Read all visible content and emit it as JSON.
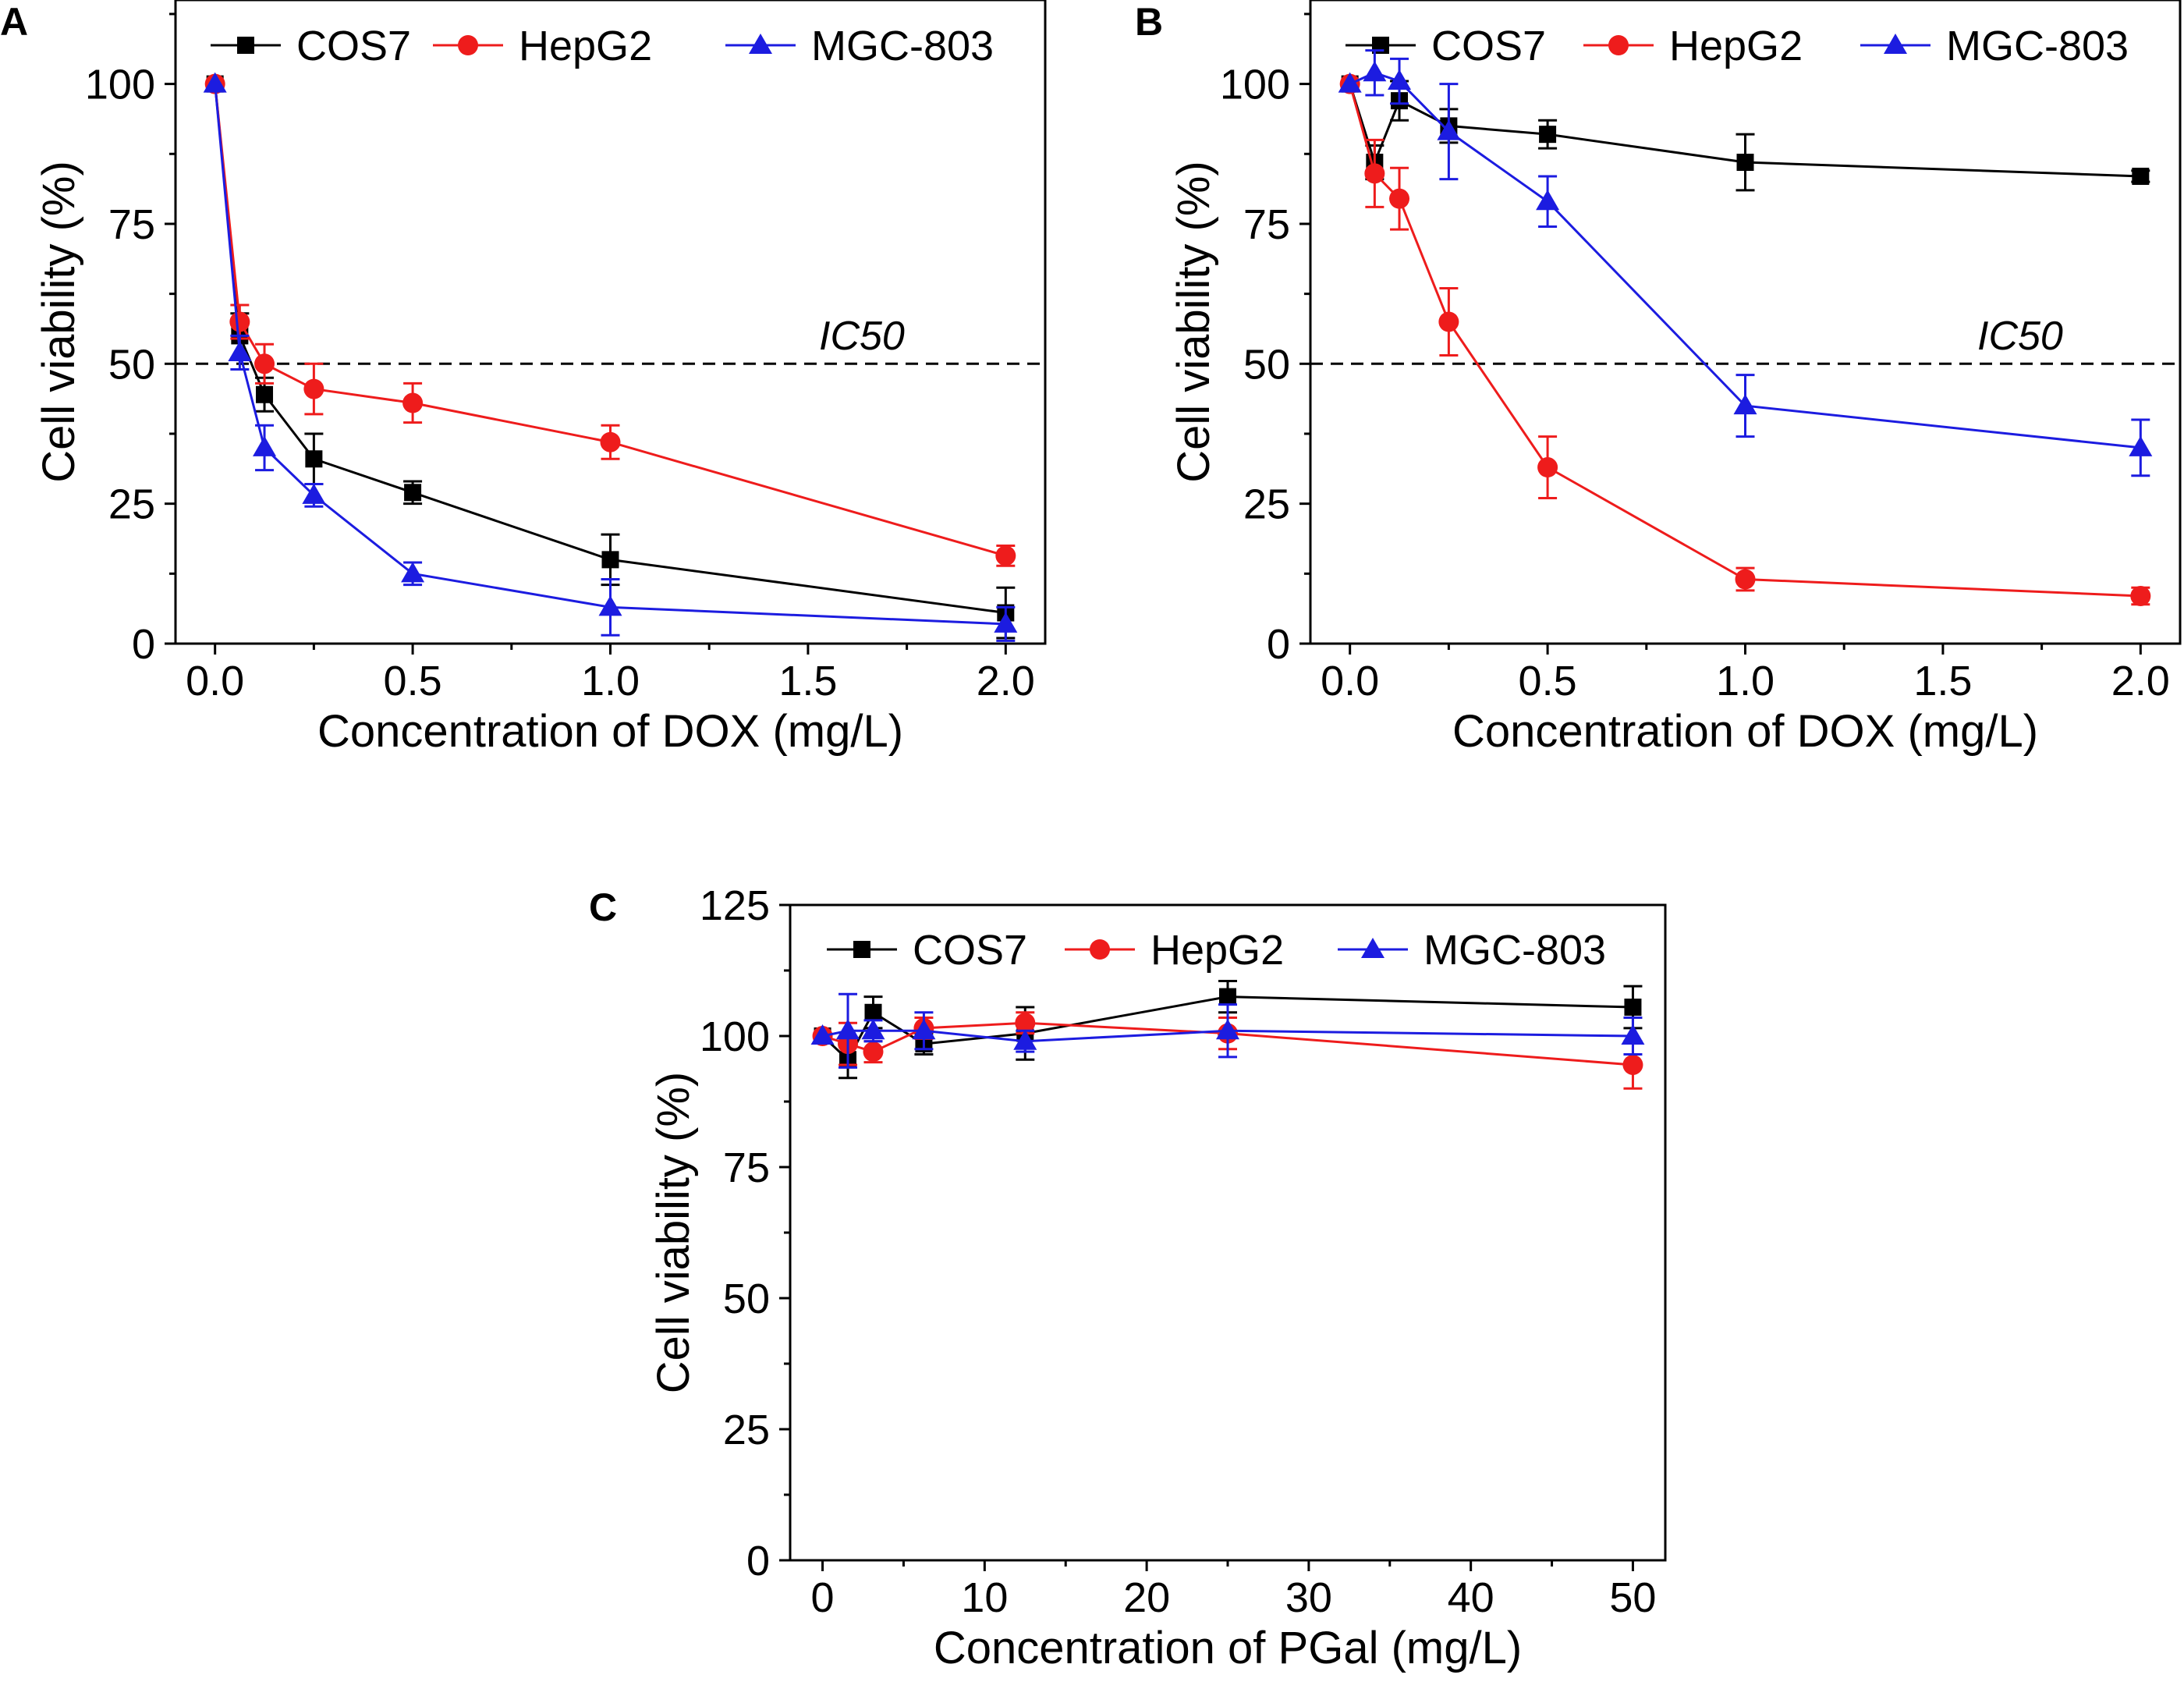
{
  "colors": {
    "COS7": "#000000",
    "HepG2": "#ee1c1c",
    "MGC-803": "#1c1ce0"
  },
  "chart_data": [
    {
      "panel": "A",
      "type": "line",
      "xlabel": "Concentration of DOX (mg/L)",
      "ylabel": "Cell viability (%)",
      "xlim": [
        -0.1,
        2.1
      ],
      "ylim": [
        0,
        115
      ],
      "xticks": [
        0.0,
        0.5,
        1.0,
        1.5,
        2.0
      ],
      "xtick_labels": [
        "0.0",
        "0.5",
        "1.0",
        "1.5",
        "2.0"
      ],
      "yticks": [
        0,
        25,
        50,
        75,
        100
      ],
      "ytick_labels": [
        "0",
        "25",
        "50",
        "75",
        "100"
      ],
      "reference_line": {
        "y": 50,
        "label": "IC50"
      },
      "legend": [
        "COS7",
        "HepG2",
        "MGC-803"
      ],
      "legend_position": "top",
      "series": [
        {
          "name": "COS7",
          "marker": "square",
          "x": [
            0,
            0.0625,
            0.125,
            0.25,
            0.5,
            1.0,
            2.0
          ],
          "y": [
            100,
            55,
            44.5,
            33,
            27,
            15,
            5.5
          ],
          "err": [
            0,
            4,
            3,
            4.5,
            2,
            4.5,
            4.5
          ]
        },
        {
          "name": "HepG2",
          "marker": "circle",
          "x": [
            0,
            0.0625,
            0.125,
            0.25,
            0.5,
            1.0,
            2.0
          ],
          "y": [
            100,
            57.5,
            50,
            45.5,
            43,
            36,
            15.7
          ],
          "err": [
            0,
            3,
            3.5,
            4.5,
            3.5,
            3,
            1.8
          ]
        },
        {
          "name": "MGC-803",
          "marker": "triangle",
          "x": [
            0,
            0.0625,
            0.125,
            0.25,
            0.5,
            1.0,
            2.0
          ],
          "y": [
            100,
            52,
            35,
            26.5,
            12.5,
            6.5,
            3.5
          ],
          "err": [
            0,
            3,
            4,
            2,
            2,
            5,
            3
          ]
        }
      ]
    },
    {
      "panel": "B",
      "type": "line",
      "xlabel": "Concentration of DOX (mg/L)",
      "ylabel": "Cell viability (%)",
      "xlim": [
        -0.1,
        2.1
      ],
      "ylim": [
        0,
        115
      ],
      "xticks": [
        0.0,
        0.5,
        1.0,
        1.5,
        2.0
      ],
      "xtick_labels": [
        "0.0",
        "0.5",
        "1.0",
        "1.5",
        "2.0"
      ],
      "yticks": [
        0,
        25,
        50,
        75,
        100
      ],
      "ytick_labels": [
        "0",
        "25",
        "50",
        "75",
        "100"
      ],
      "reference_line": {
        "y": 50,
        "label": "IC50"
      },
      "legend": [
        "COS7",
        "HepG2",
        "MGC-803"
      ],
      "legend_position": "top",
      "series": [
        {
          "name": "COS7",
          "marker": "square",
          "x": [
            0,
            0.0625,
            0.125,
            0.25,
            0.5,
            1.0,
            2.0
          ],
          "y": [
            100,
            86,
            97,
            92.5,
            91,
            86,
            83.5
          ],
          "err": [
            0,
            3,
            3.5,
            3,
            2.5,
            5,
            1
          ]
        },
        {
          "name": "HepG2",
          "marker": "circle",
          "x": [
            0,
            0.0625,
            0.125,
            0.25,
            0.5,
            1.0,
            2.0
          ],
          "y": [
            100,
            84,
            79.5,
            57.5,
            31.5,
            11.5,
            8.5
          ],
          "err": [
            0,
            6,
            5.5,
            6,
            5.5,
            2,
            1.5
          ]
        },
        {
          "name": "MGC-803",
          "marker": "triangle",
          "x": [
            0,
            0.0625,
            0.125,
            0.25,
            0.5,
            1.0,
            2.0
          ],
          "y": [
            100,
            102,
            100.5,
            91.5,
            79,
            42.5,
            35
          ],
          "err": [
            0,
            4,
            4,
            8.5,
            4.5,
            5.5,
            5
          ]
        }
      ]
    },
    {
      "panel": "C",
      "type": "line",
      "xlabel": "Concentration of PGal (mg/L)",
      "ylabel": "Cell viability (%)",
      "xlim": [
        -2,
        52
      ],
      "ylim": [
        0,
        125
      ],
      "xticks": [
        0,
        10,
        20,
        30,
        40,
        50
      ],
      "xtick_labels": [
        "0",
        "10",
        "20",
        "30",
        "40",
        "50"
      ],
      "yticks": [
        0,
        25,
        50,
        75,
        100,
        125
      ],
      "ytick_labels": [
        "0",
        "25",
        "50",
        "75",
        "100",
        "125"
      ],
      "legend": [
        "COS7",
        "HepG2",
        "MGC-803"
      ],
      "legend_position": "top",
      "series": [
        {
          "name": "COS7",
          "marker": "square",
          "x": [
            0,
            1.5625,
            3.125,
            6.25,
            12.5,
            25,
            50
          ],
          "y": [
            100,
            95.5,
            104.5,
            98.5,
            100.5,
            107.5,
            105.5
          ],
          "err": [
            0,
            3.5,
            3,
            2,
            5,
            3,
            4
          ]
        },
        {
          "name": "HepG2",
          "marker": "circle",
          "x": [
            0,
            1.5625,
            3.125,
            6.25,
            12.5,
            25,
            50
          ],
          "y": [
            100,
            98.5,
            97,
            101.5,
            102.5,
            100.5,
            94.5
          ],
          "err": [
            0,
            4,
            2,
            2,
            2,
            3,
            4.5
          ]
        },
        {
          "name": "MGC-803",
          "marker": "triangle",
          "x": [
            0,
            1.5625,
            3.125,
            6.25,
            12.5,
            25,
            50
          ],
          "y": [
            100,
            101,
            101,
            101,
            99,
            101,
            100
          ],
          "err": [
            0,
            7,
            2,
            3.5,
            2,
            5,
            3.5
          ]
        }
      ]
    }
  ]
}
